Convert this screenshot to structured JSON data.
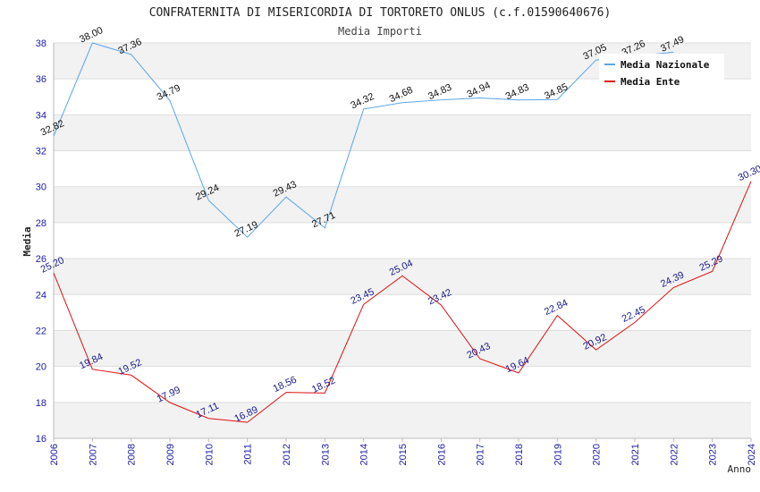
{
  "chart_data": {
    "type": "line",
    "title": "CONFRATERNITA DI MISERICORDIA DI TORTORETO ONLUS (c.f.01590640676)",
    "subtitle": "Media Importi",
    "xlabel": "Anno",
    "ylabel": "Media",
    "ylim": [
      16,
      38
    ],
    "yticks": [
      "16",
      "18",
      "20",
      "22",
      "24",
      "26",
      "28",
      "30",
      "32",
      "34",
      "36",
      "38"
    ],
    "categories": [
      "2006",
      "2007",
      "2008",
      "2009",
      "2010",
      "2011",
      "2012",
      "2013",
      "2014",
      "2015",
      "2016",
      "2017",
      "2018",
      "2019",
      "2020",
      "2021",
      "2022",
      "2023",
      "2024"
    ],
    "series": [
      {
        "name": "Media Nazionale",
        "color": "#5aa5e6",
        "values": [
          32.82,
          38.0,
          37.36,
          34.79,
          29.24,
          27.19,
          29.43,
          27.71,
          34.32,
          34.68,
          34.83,
          34.94,
          34.83,
          34.85,
          37.05,
          37.26,
          37.49,
          null,
          null
        ],
        "labels": [
          "32.82",
          "38.00",
          "37.36",
          "34.79",
          "29.24",
          "27.19",
          "29.43",
          "27.71",
          "34.32",
          "34.68",
          "34.83",
          "34.94",
          "34.83",
          "34.85",
          "37.05",
          "37.26",
          "37.49",
          "",
          ""
        ]
      },
      {
        "name": "Media Ente",
        "color": "#e01010",
        "values": [
          25.2,
          19.84,
          19.52,
          17.99,
          17.11,
          16.89,
          18.56,
          18.52,
          23.45,
          25.04,
          23.42,
          20.43,
          19.64,
          22.84,
          20.92,
          22.45,
          24.39,
          25.29,
          30.3
        ],
        "labels": [
          "25.20",
          "19.84",
          "19.52",
          "17.99",
          "17.11",
          "16.89",
          "18.56",
          "18.52",
          "23.45",
          "25.04",
          "23.42",
          "20.43",
          "19.64",
          "22.84",
          "20.92",
          "22.45",
          "24.39",
          "25.29",
          "30.30"
        ]
      }
    ],
    "legend": "top-right",
    "grid": "horizontal-banded"
  }
}
